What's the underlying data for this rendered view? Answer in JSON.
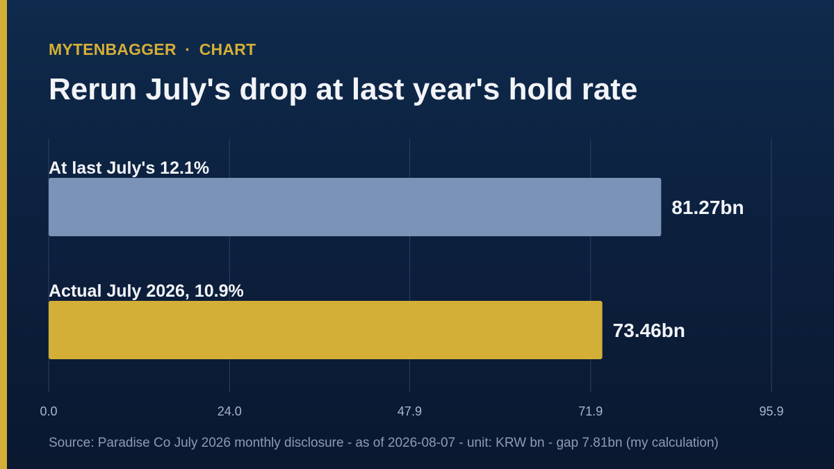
{
  "header": {
    "brand": "MYTENBAGGER",
    "separator": "·",
    "section": "CHART",
    "title": "Rerun July's drop at last year's hold rate"
  },
  "chart_data": {
    "type": "bar",
    "orientation": "horizontal",
    "categories": [
      "At last July's 12.1%",
      "Actual July 2026, 10.9%"
    ],
    "values": [
      81.27,
      73.46
    ],
    "value_labels": [
      "81.27bn",
      "73.46bn"
    ],
    "bar_colors": [
      "#7b93b6",
      "#d4af37"
    ],
    "xlim": [
      0,
      95.9
    ],
    "xticks": [
      "0.0",
      "24.0",
      "47.9",
      "71.9",
      "95.9"
    ],
    "grid": true,
    "xlabel": "",
    "ylabel": ""
  },
  "footer": {
    "source": "Source: Paradise Co July 2026 monthly disclosure - as of 2026-08-07 - unit: KRW bn - gap 7.81bn (my calculation)"
  },
  "colors": {
    "accent": "#d4af37",
    "bar_primary": "#7b93b6",
    "text": "#f2f4f8",
    "muted": "#8e9bb3",
    "grid": "#2c4366"
  }
}
